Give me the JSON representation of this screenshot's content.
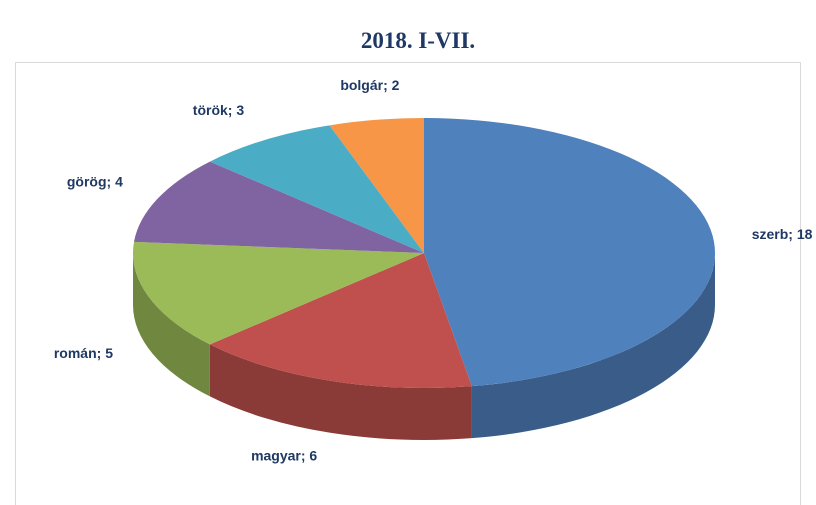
{
  "chart_data": {
    "type": "pie",
    "title": "2018. I-VII.",
    "categories": [
      "szerb",
      "magyar",
      "román",
      "görög",
      "török",
      "bolgár"
    ],
    "values": [
      18,
      6,
      5,
      4,
      3,
      2
    ],
    "value_labels": [
      "szerb; 18",
      "magyar; 6",
      "román; 5",
      "görög; 4",
      "török; 3",
      "bolgár; 2"
    ],
    "colors": [
      "#4f81bd",
      "#c0504d",
      "#9bbb59",
      "#8064a2",
      "#4bacc6",
      "#f79646"
    ]
  }
}
